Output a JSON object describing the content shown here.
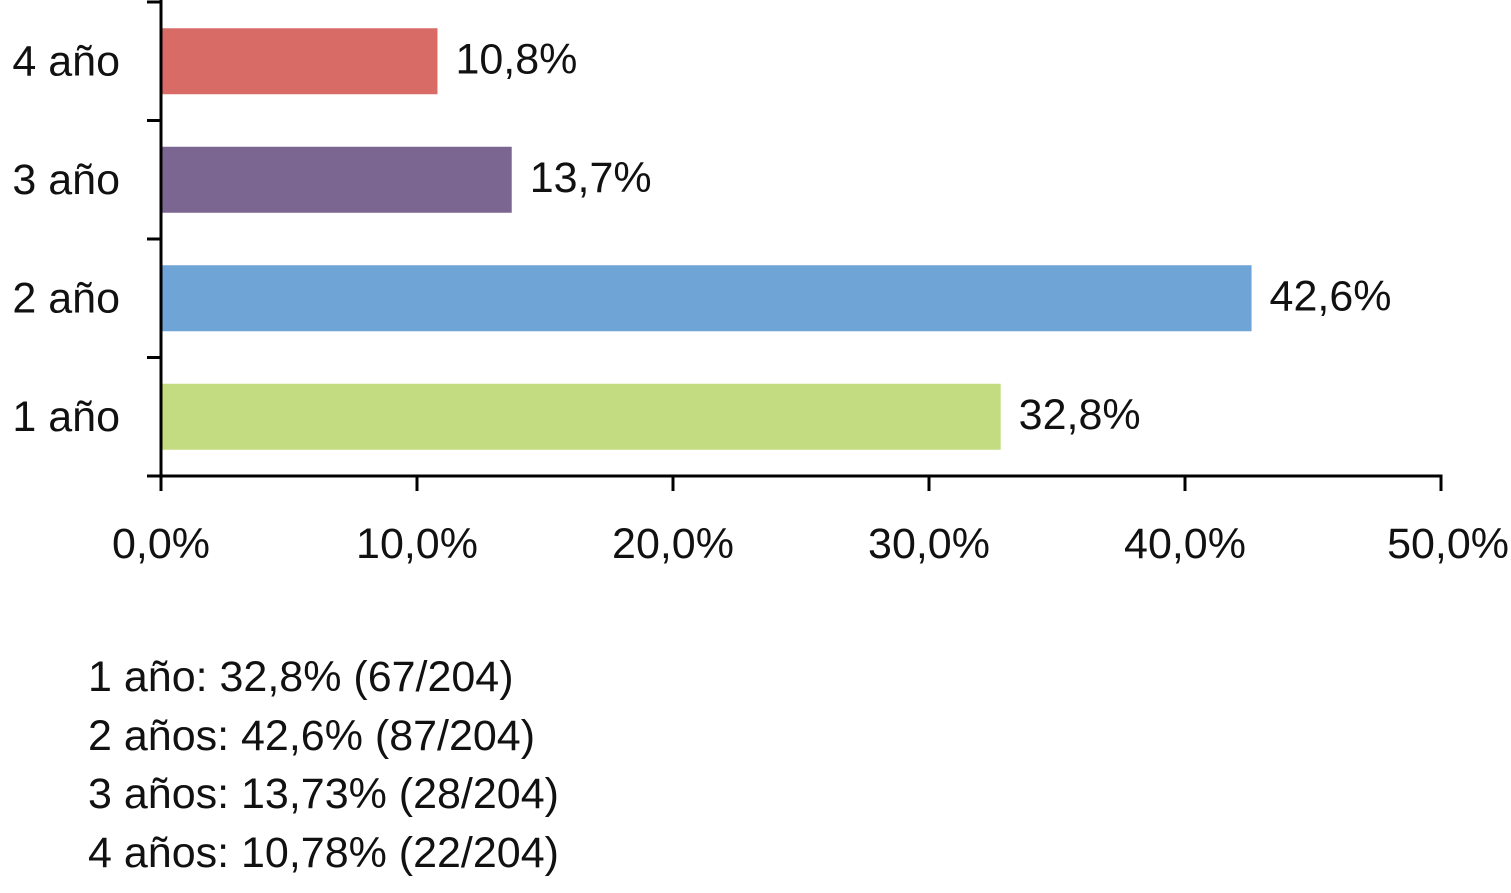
{
  "chart_data": {
    "type": "bar",
    "orientation": "horizontal",
    "categories": [
      "4 año",
      "3 año",
      "2 año",
      "1 año"
    ],
    "values": [
      10.8,
      13.7,
      42.6,
      32.8
    ],
    "data_labels": [
      "10,8%",
      "13,7%",
      "42,6%",
      "32,8%"
    ],
    "colors": [
      "#d86b66",
      "#7b6691",
      "#6fa4d6",
      "#c3dc81"
    ],
    "xlim": [
      0,
      50
    ],
    "x_ticks": [
      "0,0%",
      "10,0%",
      "20,0%",
      "30,0%",
      "40,0%",
      "50,0%"
    ],
    "grid": false,
    "legend": "none",
    "title": "",
    "xlabel": "",
    "ylabel": ""
  },
  "notes": [
    "1 año: 32,8% (67/204)",
    "2 años: 42,6% (87/204)",
    "3 años: 13,73% (28/204)",
    "4 años: 10,78% (22/204)"
  ]
}
